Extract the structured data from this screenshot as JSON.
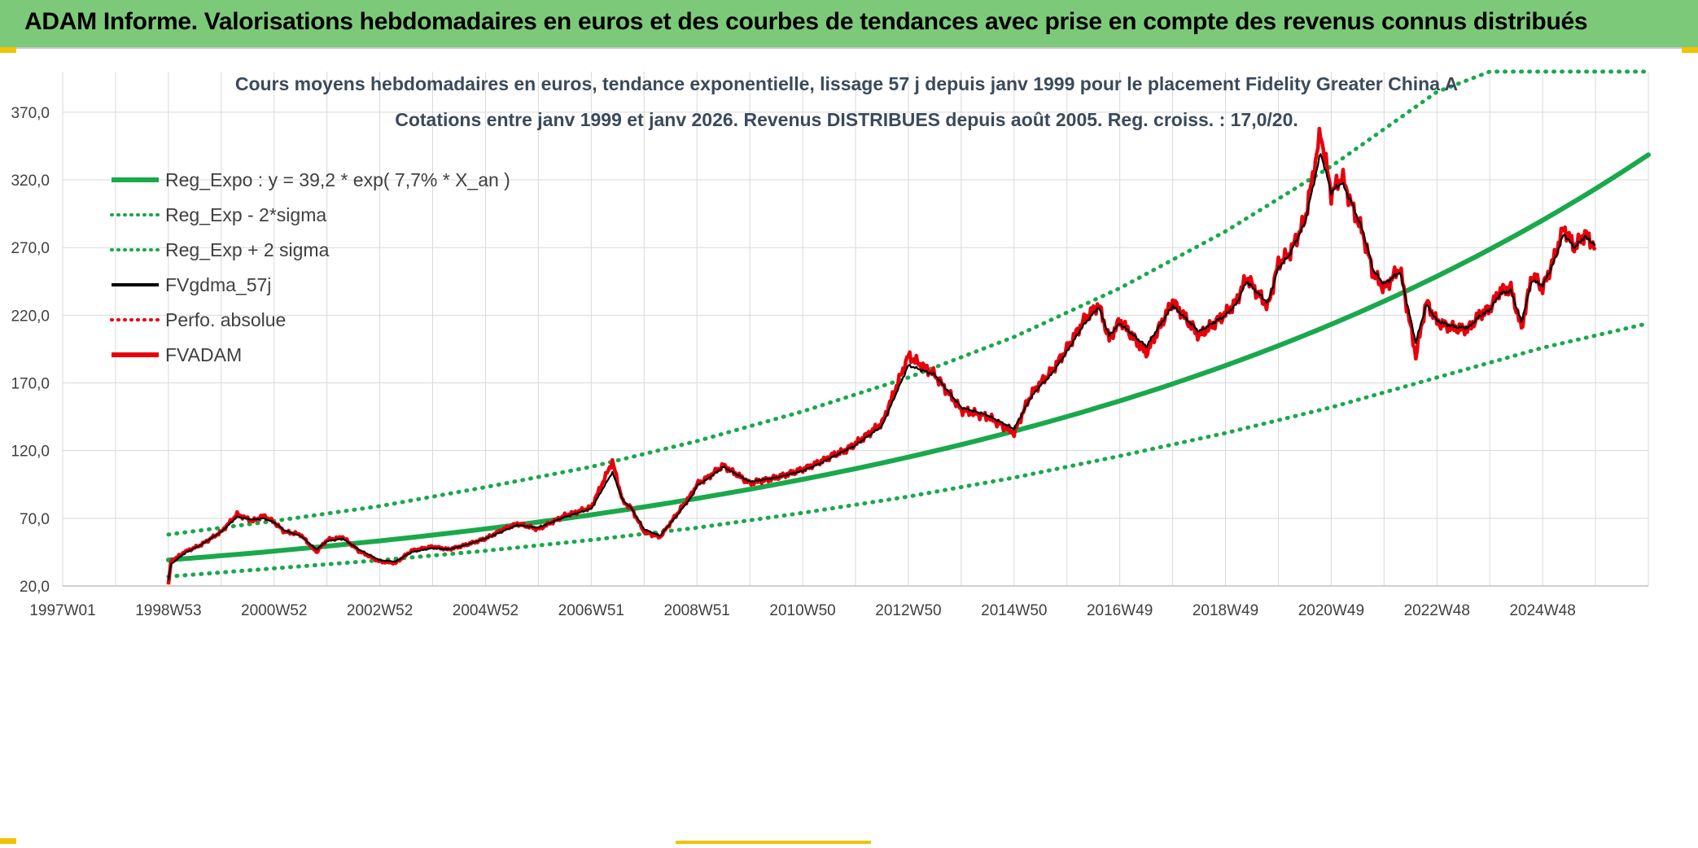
{
  "header": {
    "banner_title": "ADAM Informe. Valorisations hebdomadaires en euros et des courbes de tendances avec prise en compte des revenus connus distribués"
  },
  "colors": {
    "banner_bg": "#7dc97a",
    "reg_green": "#1aa84c",
    "price_red": "#e8000b",
    "smooth_black": "#000000",
    "grid": "#d9d9d9",
    "title_text": "#3a4a5a"
  },
  "chart_data": {
    "type": "line",
    "title": "Cours moyens hebdomadaires en euros, tendance exponentielle, lissage 57 j depuis janv 1999 pour le placement Fidelity Greater China A",
    "subtitle": "Cotations entre janv 1999 et janv 2026. Revenus DISTRIBUES depuis août 2005. Reg. croiss. : 17,0/20.",
    "xlabel": "",
    "ylabel": "",
    "ylim": [
      20,
      400
    ],
    "y_ticks": [
      20,
      70,
      120,
      170,
      220,
      270,
      320,
      370
    ],
    "y_tick_labels": [
      "20,0",
      "70,0",
      "120,0",
      "170,0",
      "220,0",
      "270,0",
      "320,0",
      "370,0"
    ],
    "x_range_years": [
      1997.0,
      2027.0
    ],
    "x_ticks": [
      {
        "label": "1997W01",
        "year": 1997.0
      },
      {
        "label": "1998W53",
        "year": 1999.0
      },
      {
        "label": "2000W52",
        "year": 2001.0
      },
      {
        "label": "2002W52",
        "year": 2003.0
      },
      {
        "label": "2004W52",
        "year": 2005.0
      },
      {
        "label": "2006W51",
        "year": 2007.0
      },
      {
        "label": "2008W51",
        "year": 2009.0
      },
      {
        "label": "2010W50",
        "year": 2011.0
      },
      {
        "label": "2012W50",
        "year": 2013.0
      },
      {
        "label": "2014W50",
        "year": 2015.0
      },
      {
        "label": "2016W49",
        "year": 2017.0
      },
      {
        "label": "2018W49",
        "year": 2019.0
      },
      {
        "label": "2020W49",
        "year": 2021.0
      },
      {
        "label": "2022W48",
        "year": 2023.0
      },
      {
        "label": "2024W48",
        "year": 2025.0
      }
    ],
    "legend": {
      "placement": "top-left",
      "entries": [
        {
          "label": "Reg_Expo : y = 39,2 * exp( 7,7% *  X_an )",
          "style": "solid-thick",
          "color": "#1aa84c"
        },
        {
          "label": "Reg_Exp - 2*sigma",
          "style": "dotted",
          "color": "#1aa84c"
        },
        {
          "label": "Reg_Exp + 2 sigma",
          "style": "dotted",
          "color": "#1aa84c"
        },
        {
          "label": "FVgdma_57j",
          "style": "solid",
          "color": "#000000"
        },
        {
          "label": "Perfo. absolue",
          "style": "dotted",
          "color": "#e8000b"
        },
        {
          "label": "FVADAM",
          "style": "solid-thick",
          "color": "#e8000b"
        }
      ]
    },
    "series": [
      {
        "name": "Reg_Expo",
        "model": {
          "a": 39.2,
          "rate": 0.077,
          "x0_year": 1999.0
        },
        "x": [
          1999.0,
          2027.0
        ]
      },
      {
        "name": "Reg_Exp + 2 sigma",
        "x": [
          1999.0,
          2001.0,
          2003.0,
          2005.0,
          2007.0,
          2009.0,
          2011.0,
          2013.0,
          2015.0,
          2017.0,
          2019.0,
          2021.0,
          2023.0,
          2024.0,
          2027.0
        ],
        "values": [
          58,
          68,
          79,
          93,
          108,
          127,
          149,
          174,
          204,
          240,
          282,
          330,
          385,
          400,
          400
        ],
        "ylim_cap": 400
      },
      {
        "name": "Reg_Exp - 2*sigma",
        "x": [
          1999.0,
          2001.0,
          2003.0,
          2005.0,
          2007.0,
          2009.0,
          2011.0,
          2013.0,
          2015.0,
          2017.0,
          2019.0,
          2021.0,
          2023.0,
          2025.0,
          2027.0
        ],
        "values": [
          27,
          33,
          39,
          46,
          54,
          63,
          74,
          86,
          100,
          116,
          133,
          152,
          174,
          196,
          214
        ]
      },
      {
        "name": "FVADAM",
        "x": [
          1999.0,
          1999.05,
          1999.3,
          1999.6,
          2000.0,
          2000.3,
          2000.6,
          2000.8,
          2001.0,
          2001.2,
          2001.5,
          2001.8,
          2002.0,
          2002.3,
          2002.6,
          2003.0,
          2003.3,
          2003.6,
          2004.0,
          2004.3,
          2004.6,
          2005.0,
          2005.3,
          2005.6,
          2006.0,
          2006.5,
          2007.0,
          2007.4,
          2007.6,
          2007.75,
          2008.0,
          2008.3,
          2008.6,
          2008.9,
          2009.0,
          2009.2,
          2009.5,
          2010.0,
          2010.5,
          2011.0,
          2011.3,
          2011.6,
          2011.8,
          2012.0,
          2012.5,
          2013.0,
          2013.5,
          2014.0,
          2014.5,
          2015.0,
          2015.3,
          2015.45,
          2015.7,
          2016.0,
          2016.3,
          2016.6,
          2016.8,
          2017.0,
          2017.5,
          2018.0,
          2018.5,
          2019.0,
          2019.2,
          2019.4,
          2019.8,
          2020.0,
          2020.2,
          2020.5,
          2020.8,
          2021.0,
          2021.2,
          2021.4,
          2021.6,
          2021.8,
          2022.0,
          2022.3,
          2022.6,
          2022.8,
          2023.0,
          2023.2,
          2023.4,
          2023.6,
          2023.8,
          2024.0,
          2024.2,
          2024.4,
          2024.6,
          2024.8,
          2025.0,
          2025.2,
          2025.4,
          2025.6,
          2025.8,
          2026.0
        ],
        "values": [
          21,
          38,
          45,
          50,
          60,
          73,
          68,
          72,
          67,
          60,
          58,
          45,
          54,
          56,
          46,
          38,
          37,
          46,
          49,
          47,
          50,
          55,
          61,
          66,
          62,
          72,
          78,
          112,
          82,
          78,
          60,
          56,
          72,
          88,
          95,
          100,
          109,
          96,
          100,
          106,
          111,
          117,
          120,
          125,
          140,
          190,
          176,
          150,
          145,
          133,
          160,
          168,
          178,
          195,
          215,
          228,
          202,
          216,
          192,
          230,
          205,
          221,
          230,
          248,
          226,
          258,
          265,
          290,
          355,
          310,
          323,
          300,
          280,
          250,
          240,
          255,
          190,
          230,
          215,
          212,
          210,
          210,
          220,
          225,
          238,
          240,
          210,
          250,
          240,
          260,
          285,
          270,
          280,
          270
        ]
      },
      {
        "name": "FVgdma_57j",
        "x": [
          1999.0,
          1999.05,
          1999.3,
          1999.6,
          2000.0,
          2000.3,
          2000.6,
          2000.8,
          2001.0,
          2001.2,
          2001.5,
          2001.8,
          2002.0,
          2002.3,
          2002.6,
          2003.0,
          2003.3,
          2003.6,
          2004.0,
          2004.3,
          2004.6,
          2005.0,
          2005.3,
          2005.6,
          2006.0,
          2006.5,
          2007.0,
          2007.4,
          2007.6,
          2007.75,
          2008.0,
          2008.3,
          2008.6,
          2008.9,
          2009.0,
          2009.2,
          2009.5,
          2010.0,
          2010.5,
          2011.0,
          2011.3,
          2011.6,
          2011.8,
          2012.0,
          2012.5,
          2013.0,
          2013.5,
          2014.0,
          2014.5,
          2015.0,
          2015.3,
          2015.45,
          2015.7,
          2016.0,
          2016.3,
          2016.6,
          2016.8,
          2017.0,
          2017.5,
          2018.0,
          2018.5,
          2019.0,
          2019.2,
          2019.4,
          2019.8,
          2020.0,
          2020.2,
          2020.5,
          2020.8,
          2021.0,
          2021.2,
          2021.4,
          2021.6,
          2021.8,
          2022.0,
          2022.3,
          2022.6,
          2022.8,
          2023.0,
          2023.2,
          2023.4,
          2023.6,
          2023.8,
          2024.0,
          2024.2,
          2024.4,
          2024.6,
          2024.8,
          2025.0,
          2025.2,
          2025.4,
          2025.6,
          2025.8,
          2026.0
        ],
        "values": [
          24,
          36,
          44,
          50,
          60,
          71,
          69,
          70,
          67,
          61,
          57,
          47,
          53,
          55,
          47,
          39,
          38,
          45,
          48,
          47,
          50,
          55,
          60,
          65,
          63,
          71,
          77,
          104,
          83,
          78,
          62,
          57,
          71,
          86,
          94,
          99,
          108,
          97,
          100,
          105,
          110,
          116,
          120,
          124,
          138,
          183,
          176,
          152,
          146,
          136,
          158,
          166,
          176,
          193,
          212,
          226,
          205,
          214,
          197,
          227,
          208,
          220,
          228,
          245,
          229,
          255,
          264,
          288,
          340,
          311,
          318,
          302,
          282,
          253,
          243,
          252,
          200,
          228,
          216,
          213,
          211,
          211,
          219,
          224,
          236,
          238,
          215,
          246,
          242,
          258,
          280,
          270,
          278,
          272
        ]
      }
    ]
  }
}
